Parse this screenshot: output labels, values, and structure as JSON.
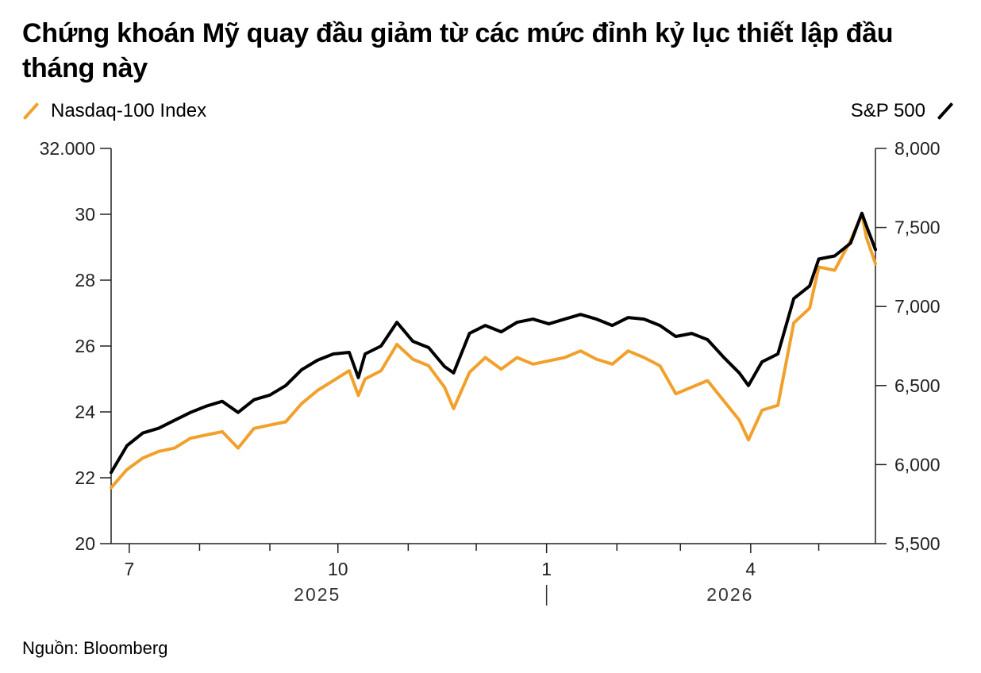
{
  "title": "Chứng khoán Mỹ quay đầu giảm từ các mức đỉnh kỷ lục thiết lập đầu tháng này",
  "source": "Nguồn: Bloomberg",
  "chart_data": {
    "type": "line",
    "title": "Chứng khoán Mỹ quay đầu giảm từ các mức đỉnh kỷ lục thiết lập đầu tháng này",
    "legend_placement": "top",
    "grid": false,
    "x_axis": {
      "range": [
        "2025-06-23",
        "2026-05-26"
      ],
      "major_ticks": [
        {
          "date": "2025-07-01",
          "label": "7"
        },
        {
          "date": "2025-10-01",
          "label": "10"
        },
        {
          "date": "2026-01-01",
          "label": "1"
        },
        {
          "date": "2026-04-01",
          "label": "4"
        }
      ],
      "minor_ticks": [
        "2025-08-01",
        "2025-09-01",
        "2025-11-01",
        "2025-12-01",
        "2026-02-01",
        "2026-03-01",
        "2026-05-01"
      ],
      "year_labels": [
        {
          "label": "2025",
          "date": "2025-10-01"
        },
        {
          "label": "2026",
          "date": "2026-04-01"
        }
      ],
      "year_separator": "2026-01-01"
    },
    "y_left": {
      "series": "Nasdaq-100 Index",
      "range": [
        20000,
        32000
      ],
      "ticks": [
        {
          "value": 32000,
          "label": "32.000"
        },
        {
          "value": 30000,
          "label": "30"
        },
        {
          "value": 28000,
          "label": "28"
        },
        {
          "value": 26000,
          "label": "26"
        },
        {
          "value": 24000,
          "label": "24"
        },
        {
          "value": 22000,
          "label": "22"
        },
        {
          "value": 20000,
          "label": "20"
        }
      ]
    },
    "y_right": {
      "series": "S&P 500",
      "range": [
        5500,
        8000
      ],
      "ticks": [
        {
          "value": 8000,
          "label": "8,000"
        },
        {
          "value": 7500,
          "label": "7,500"
        },
        {
          "value": 7000,
          "label": "7,000"
        },
        {
          "value": 6500,
          "label": "6,500"
        },
        {
          "value": 6000,
          "label": "6,000"
        },
        {
          "value": 5500,
          "label": "5,500"
        }
      ]
    },
    "series": [
      {
        "name": "Nasdaq-100 Index",
        "axis": "left",
        "color": "#f2a02c",
        "x": [
          "2025-06-23",
          "2025-06-30",
          "2025-07-07",
          "2025-07-14",
          "2025-07-21",
          "2025-07-28",
          "2025-08-04",
          "2025-08-11",
          "2025-08-18",
          "2025-08-25",
          "2025-09-01",
          "2025-09-08",
          "2025-09-15",
          "2025-09-22",
          "2025-09-29",
          "2025-10-06",
          "2025-10-10",
          "2025-10-13",
          "2025-10-20",
          "2025-10-27",
          "2025-11-03",
          "2025-11-10",
          "2025-11-17",
          "2025-11-21",
          "2025-11-28",
          "2025-12-05",
          "2025-12-12",
          "2025-12-19",
          "2025-12-26",
          "2026-01-02",
          "2026-01-09",
          "2026-01-16",
          "2026-01-23",
          "2026-01-30",
          "2026-02-06",
          "2026-02-13",
          "2026-02-20",
          "2026-02-27",
          "2026-03-06",
          "2026-03-13",
          "2026-03-20",
          "2026-03-27",
          "2026-03-31",
          "2026-04-06",
          "2026-04-13",
          "2026-04-20",
          "2026-04-27",
          "2026-05-01",
          "2026-05-08",
          "2026-05-15",
          "2026-05-20",
          "2026-05-22",
          "2026-05-26"
        ],
        "values": [
          21700,
          22250,
          22600,
          22800,
          22900,
          23200,
          23300,
          23400,
          22900,
          23500,
          23600,
          23700,
          24250,
          24650,
          24950,
          25250,
          24500,
          25000,
          25250,
          26050,
          25600,
          25400,
          24750,
          24100,
          25200,
          25650,
          25300,
          25650,
          25450,
          25550,
          25650,
          25850,
          25600,
          25450,
          25850,
          25650,
          25400,
          24550,
          24750,
          24950,
          24350,
          23750,
          23150,
          24050,
          24200,
          26700,
          27150,
          28400,
          28300,
          29200,
          30000,
          29300,
          28500
        ]
      },
      {
        "name": "S&P 500",
        "axis": "right",
        "color": "#000000",
        "x": [
          "2025-06-23",
          "2025-06-30",
          "2025-07-07",
          "2025-07-14",
          "2025-07-21",
          "2025-07-28",
          "2025-08-04",
          "2025-08-11",
          "2025-08-18",
          "2025-08-25",
          "2025-09-01",
          "2025-09-08",
          "2025-09-15",
          "2025-09-22",
          "2025-09-29",
          "2025-10-06",
          "2025-10-10",
          "2025-10-13",
          "2025-10-20",
          "2025-10-27",
          "2025-11-03",
          "2025-11-10",
          "2025-11-17",
          "2025-11-21",
          "2025-11-28",
          "2025-12-05",
          "2025-12-12",
          "2025-12-19",
          "2025-12-26",
          "2026-01-02",
          "2026-01-09",
          "2026-01-16",
          "2026-01-23",
          "2026-01-30",
          "2026-02-06",
          "2026-02-13",
          "2026-02-20",
          "2026-02-27",
          "2026-03-06",
          "2026-03-13",
          "2026-03-20",
          "2026-03-27",
          "2026-03-31",
          "2026-04-06",
          "2026-04-13",
          "2026-04-20",
          "2026-04-27",
          "2026-05-01",
          "2026-05-08",
          "2026-05-15",
          "2026-05-20",
          "2026-05-22",
          "2026-05-26"
        ],
        "values": [
          5950,
          6120,
          6200,
          6230,
          6280,
          6330,
          6370,
          6400,
          6330,
          6410,
          6440,
          6500,
          6600,
          6660,
          6700,
          6710,
          6550,
          6700,
          6750,
          6900,
          6780,
          6740,
          6620,
          6580,
          6830,
          6880,
          6840,
          6900,
          6920,
          6890,
          6920,
          6950,
          6920,
          6880,
          6930,
          6920,
          6880,
          6810,
          6830,
          6790,
          6680,
          6580,
          6500,
          6650,
          6700,
          7050,
          7130,
          7300,
          7320,
          7400,
          7590,
          7510,
          7360
        ]
      }
    ]
  }
}
